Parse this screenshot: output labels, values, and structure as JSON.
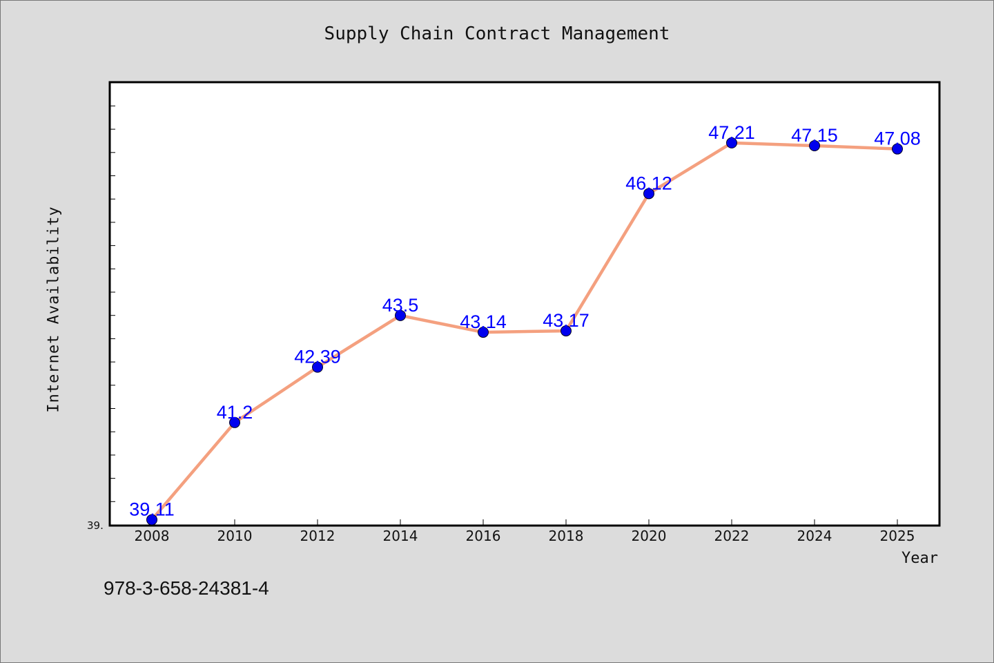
{
  "chart_data": {
    "type": "line",
    "title": "Supply Chain Contract Management",
    "xlabel": "Year",
    "ylabel": "Internet Availability",
    "x": [
      "2008",
      "2010",
      "2012",
      "2014",
      "2016",
      "2018",
      "2020",
      "2022",
      "2024",
      "2025"
    ],
    "series": [
      {
        "values": [
          39.11,
          41.2,
          42.39,
          43.5,
          43.14,
          43.17,
          46.12,
          47.21,
          47.15,
          47.08
        ],
        "data_labels": [
          "39.11",
          "41.2",
          "42.39",
          "43.5",
          "43.14",
          "43.17",
          "46.12",
          "47.21",
          "47.15",
          "47.08"
        ],
        "line_color": "#f4a07f",
        "marker_color": "#0000ee"
      }
    ],
    "ylim": [
      39.0,
      48.5
    ],
    "ytick_labels": [
      "39."
    ],
    "grid": false,
    "legend": "none"
  },
  "footer": {
    "isbn": "978-3-658-24381-4"
  },
  "colors": {
    "background": "#dcdcdc",
    "plot_background": "#ffffff",
    "data_label": "#0000ff"
  }
}
